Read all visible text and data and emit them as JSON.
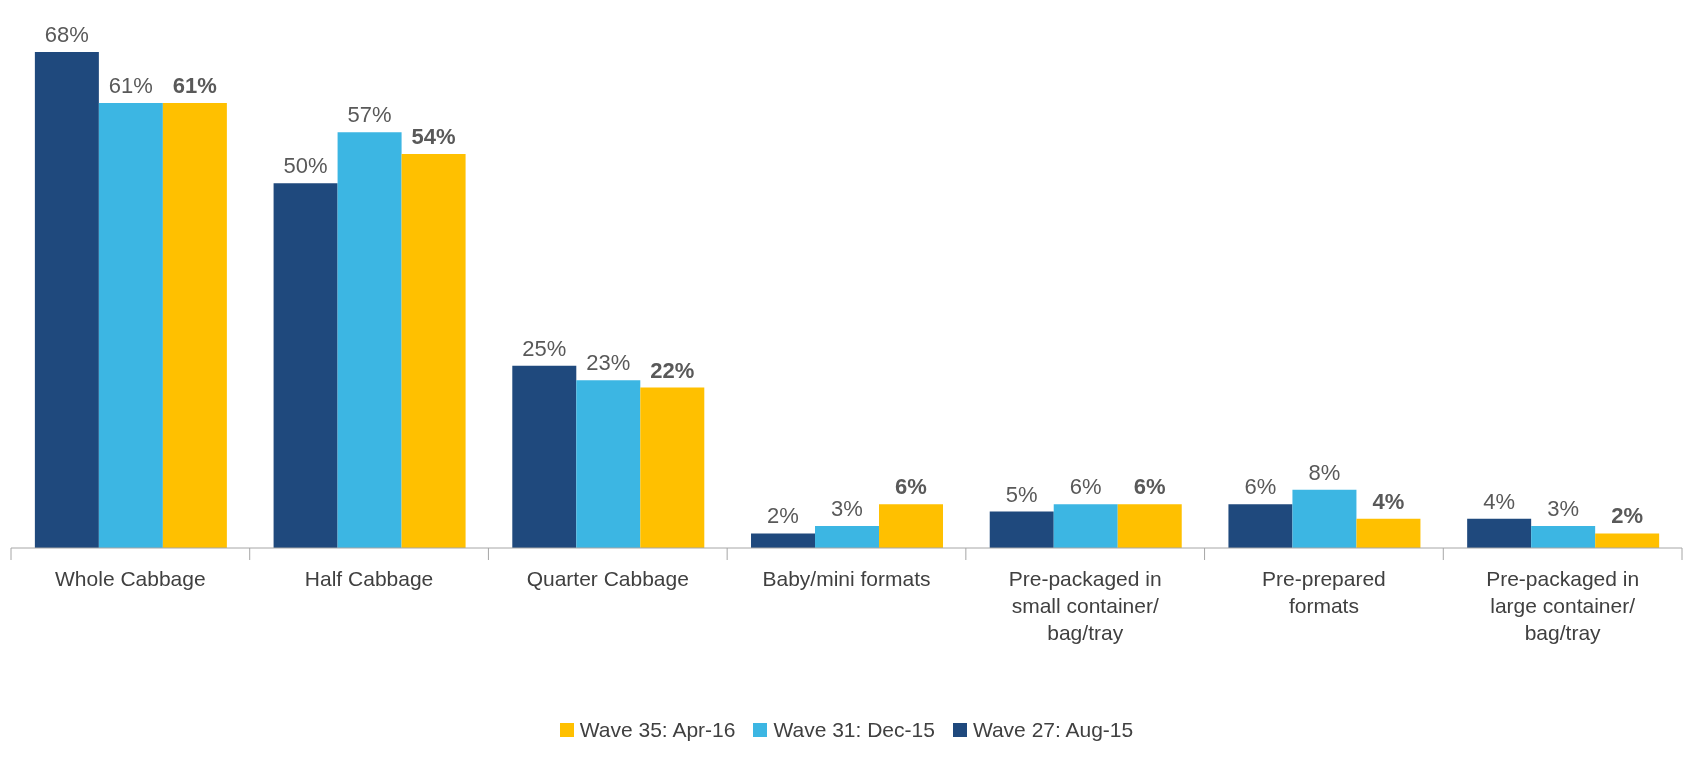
{
  "chart_data": {
    "type": "bar",
    "categories": [
      "Whole Cabbage",
      "Half Cabbage",
      "Quarter Cabbage",
      "Baby/mini formats",
      "Pre-packaged in small container/ bag/tray",
      "Pre-prepared formats",
      "Pre-packaged in large container/ bag/tray"
    ],
    "series": [
      {
        "name": "Wave 27: Aug-15",
        "color": "#1f497d",
        "values": [
          68,
          50,
          25,
          2,
          5,
          6,
          4
        ],
        "value_labels": [
          "68%",
          "50%",
          "25%",
          "2%",
          "5%",
          "6%",
          "4%"
        ]
      },
      {
        "name": "Wave 31: Dec-15",
        "color": "#3cb6e3",
        "values": [
          61,
          57,
          23,
          3,
          6,
          8,
          3
        ],
        "value_labels": [
          "61%",
          "57%",
          "23%",
          "3%",
          "6%",
          "8%",
          "3%"
        ]
      },
      {
        "name": "Wave 35: Apr-16",
        "color": "#ffc000",
        "values": [
          61,
          54,
          22,
          6,
          6,
          4,
          2
        ],
        "value_labels": [
          "61%",
          "54%",
          "22%",
          "6%",
          "6%",
          "4%",
          "2%"
        ]
      }
    ],
    "legend": "bottom"
  }
}
